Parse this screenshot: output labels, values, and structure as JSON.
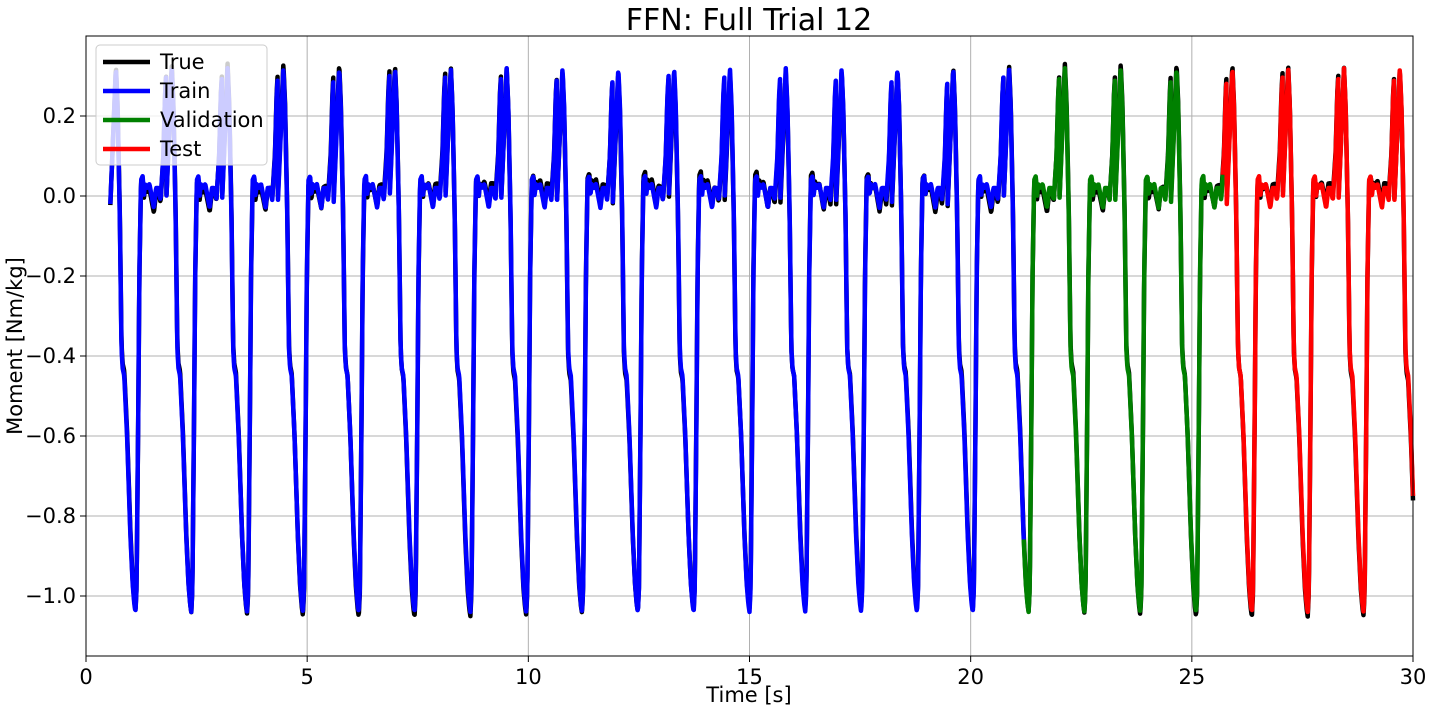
{
  "chart_data": {
    "type": "line",
    "title": "FFN: Full Trial 12",
    "xlabel": "Time [s]",
    "ylabel": "Moment [Nm/kg]",
    "xlim": [
      0,
      30
    ],
    "ylim": [
      -1.15,
      0.4
    ],
    "x_ticks": [
      0,
      5,
      10,
      15,
      20,
      25,
      30
    ],
    "x_tick_labels": [
      "0",
      "5",
      "10",
      "15",
      "20",
      "25",
      "30"
    ],
    "y_ticks": [
      0.2,
      0.0,
      -0.2,
      -0.4,
      -0.6,
      -0.8,
      -1.0
    ],
    "y_tick_labels": [
      "0.2",
      "0.0",
      "−0.2",
      "−0.4",
      "−0.6",
      "−0.8",
      "−1.0"
    ],
    "grid": true,
    "legend_position": "top-left",
    "cycle": {
      "start_time": 0.55,
      "period_s": 1.262,
      "phase_moment_pairs": [
        [
          0.0,
          -0.02
        ],
        [
          0.06,
          0.18
        ],
        [
          0.1,
          0.32
        ],
        [
          0.13,
          0.22
        ],
        [
          0.17,
          -0.05
        ],
        [
          0.2,
          -0.38
        ],
        [
          0.22,
          -0.43
        ],
        [
          0.25,
          -0.45
        ],
        [
          0.3,
          -0.6
        ],
        [
          0.36,
          -0.85
        ],
        [
          0.4,
          -0.97
        ],
        [
          0.43,
          -1.02
        ],
        [
          0.45,
          -1.04
        ],
        [
          0.47,
          -0.98
        ],
        [
          0.5,
          -0.55
        ],
        [
          0.52,
          -0.2
        ],
        [
          0.55,
          0.04
        ],
        [
          0.58,
          0.05
        ],
        [
          0.6,
          0.0
        ],
        [
          0.62,
          0.03
        ],
        [
          0.66,
          0.02
        ],
        [
          0.7,
          0.03
        ],
        [
          0.74,
          0.0
        ],
        [
          0.78,
          -0.03
        ],
        [
          0.82,
          0.02
        ],
        [
          0.86,
          0.02
        ],
        [
          0.9,
          -0.01
        ],
        [
          0.95,
          0.1
        ],
        [
          0.98,
          0.25
        ],
        [
          1.0,
          0.3
        ]
      ]
    },
    "series": [
      {
        "name": "True",
        "color": "#000000",
        "x_range": [
          0.55,
          30
        ]
      },
      {
        "name": "Train",
        "color": "#0000ff",
        "x_range": [
          0.55,
          21.2
        ]
      },
      {
        "name": "Validation",
        "color": "#008000",
        "x_range": [
          21.2,
          25.7
        ]
      },
      {
        "name": "Test",
        "color": "#ff0000",
        "x_range": [
          25.7,
          30
        ]
      }
    ]
  }
}
